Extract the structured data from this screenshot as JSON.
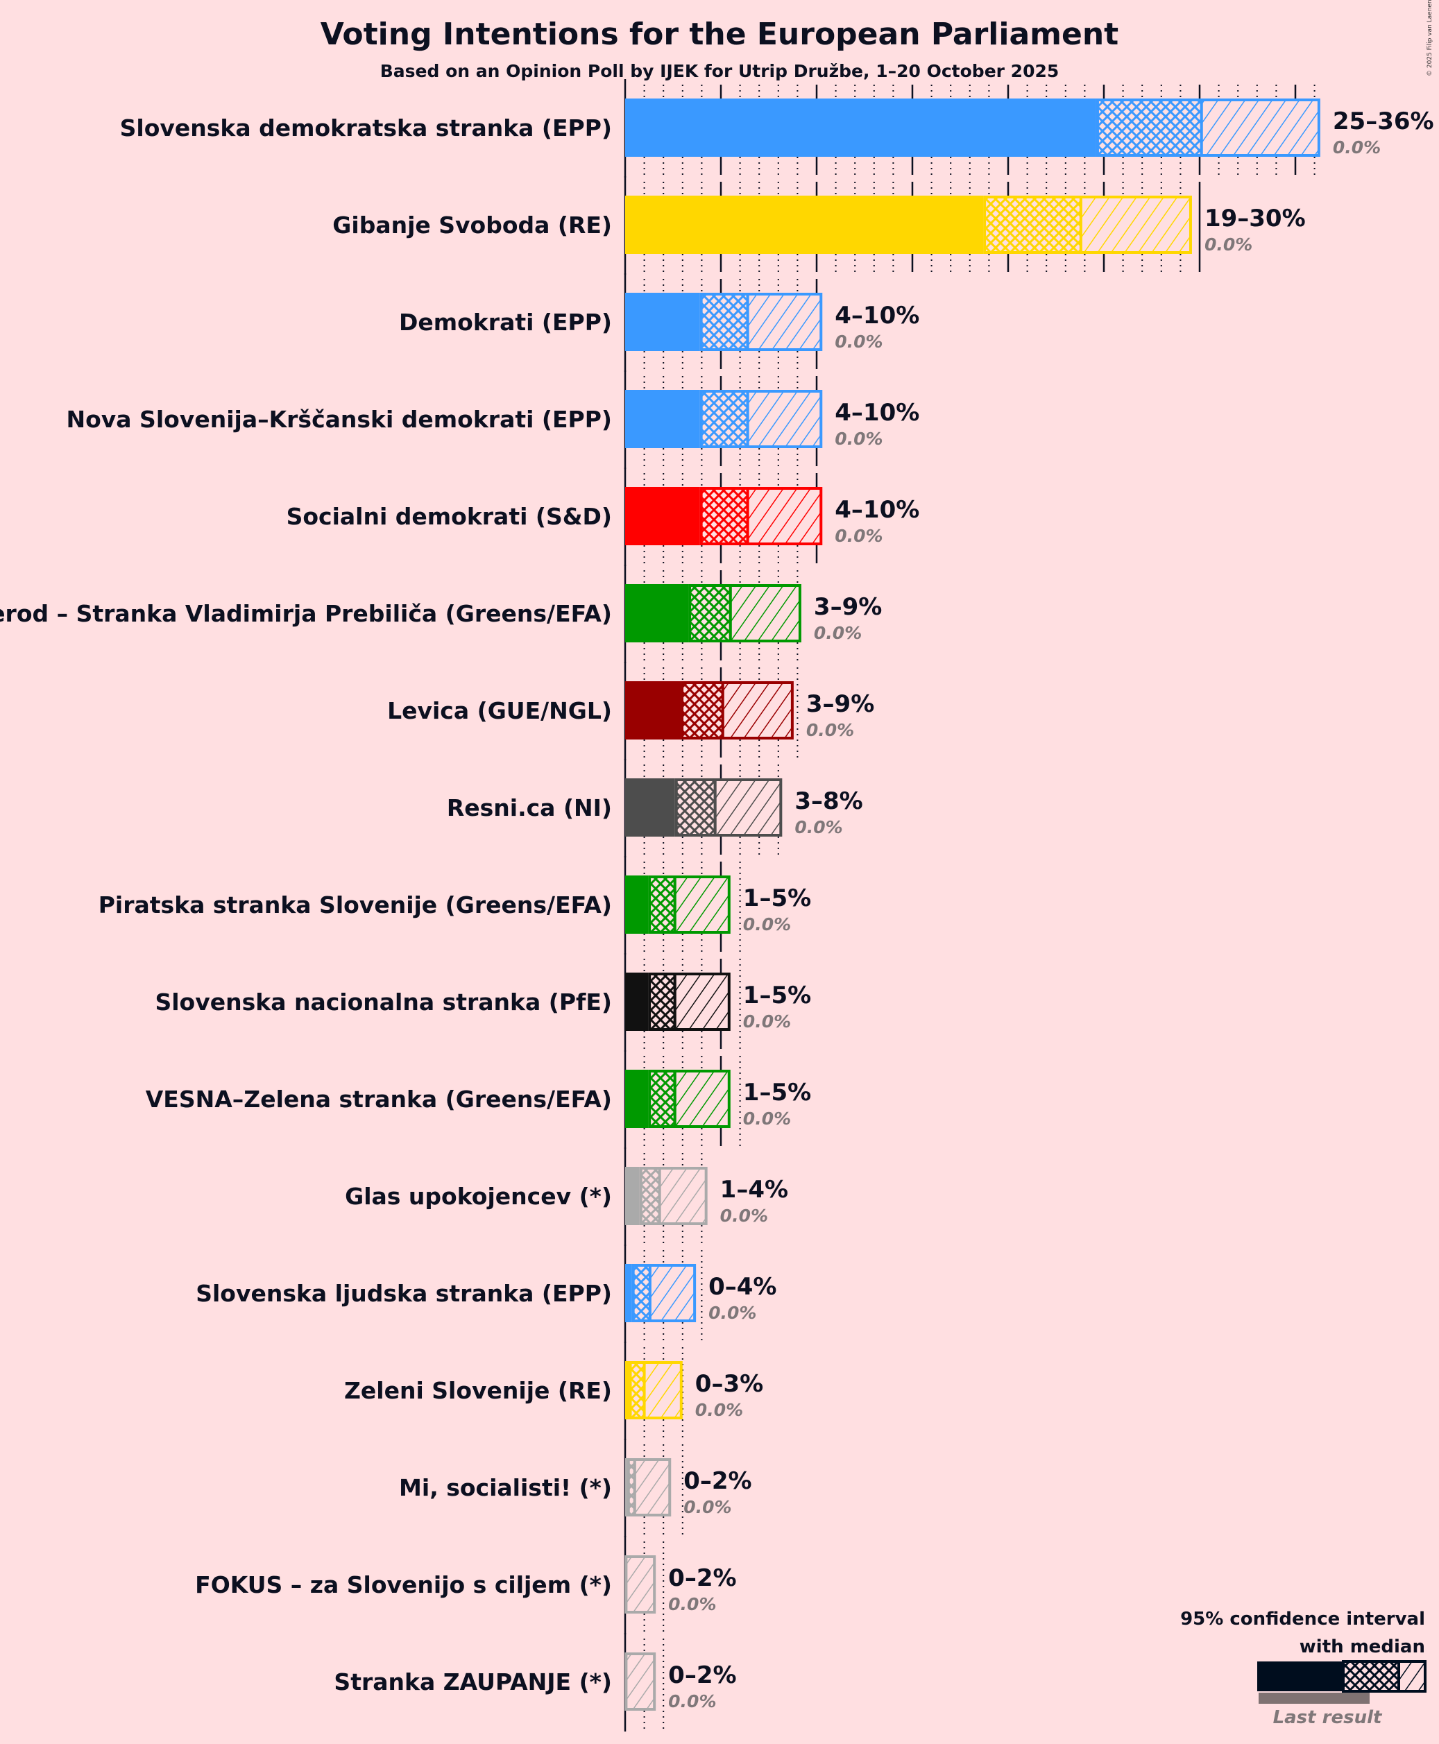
{
  "chart_data": {
    "type": "bar",
    "title": "Voting Intentions for the European Parliament",
    "subtitle": "Based on an Opinion Poll by IJEK for Utrip Družbe, 1–20 October 2025",
    "credit": "© 2025 Filip van Laenen",
    "xlabel": "",
    "ylabel": "",
    "xlim": [
      0,
      37
    ],
    "grid": true,
    "legend": {
      "title_line1": "95% confidence interval",
      "title_line2": "with median",
      "last_result_label": "Last result",
      "placement": "bottom-right"
    },
    "series": [
      {
        "name": "Slovenska demokratska stranka (EPP)",
        "color": "#3a99ff",
        "low": 24.6,
        "median": 30.1,
        "high": 36.3,
        "range_label": "25–36%",
        "last_result": "0.0%"
      },
      {
        "name": "Gibanje Svoboda (RE)",
        "color": "#ffd700",
        "low": 18.7,
        "median": 23.8,
        "high": 29.6,
        "range_label": "19–30%",
        "last_result": "0.0%"
      },
      {
        "name": "Demokrati (EPP)",
        "color": "#3a99ff",
        "low": 3.9,
        "median": 6.4,
        "high": 10.3,
        "range_label": "4–10%",
        "last_result": "0.0%"
      },
      {
        "name": "Nova Slovenija–Krščanski demokrati (EPP)",
        "color": "#3a99ff",
        "low": 3.9,
        "median": 6.4,
        "high": 10.3,
        "range_label": "4–10%",
        "last_result": "0.0%"
      },
      {
        "name": "Socialni demokrati (S&D)",
        "color": "#ff0000",
        "low": 3.9,
        "median": 6.4,
        "high": 10.3,
        "range_label": "4–10%",
        "last_result": "0.0%"
      },
      {
        "name": "Prerod – Stranka Vladimirja Prebiliča (Greens/EFA)",
        "color": "#009900",
        "low": 3.3,
        "median": 5.5,
        "high": 9.2,
        "range_label": "3–9%",
        "last_result": "0.0%"
      },
      {
        "name": "Levica (GUE/NGL)",
        "color": "#990000",
        "low": 2.9,
        "median": 5.1,
        "high": 8.8,
        "range_label": "3–9%",
        "last_result": "0.0%"
      },
      {
        "name": "Resni.ca (NI)",
        "color": "#4d4d4d",
        "low": 2.6,
        "median": 4.7,
        "high": 8.2,
        "range_label": "3–8%",
        "last_result": "0.0%"
      },
      {
        "name": "Piratska stranka Slovenije (Greens/EFA)",
        "color": "#009900",
        "low": 1.2,
        "median": 2.6,
        "high": 5.5,
        "range_label": "1–5%",
        "last_result": "0.0%"
      },
      {
        "name": "Slovenska nacionalna stranka (PfE)",
        "color": "#111111",
        "low": 1.2,
        "median": 2.6,
        "high": 5.5,
        "range_label": "1–5%",
        "last_result": "0.0%"
      },
      {
        "name": "VESNA–Zelena stranka (Greens/EFA)",
        "color": "#009900",
        "low": 1.2,
        "median": 2.6,
        "high": 5.5,
        "range_label": "1–5%",
        "last_result": "0.0%"
      },
      {
        "name": "Glas upokojencev (*)",
        "color": "#aaaaaa",
        "low": 0.75,
        "median": 1.8,
        "high": 4.3,
        "range_label": "1–4%",
        "last_result": "0.0%"
      },
      {
        "name": "Slovenska ljudska stranka (EPP)",
        "color": "#3a99ff",
        "low": 0.35,
        "median": 1.3,
        "high": 3.7,
        "range_label": "0–4%",
        "last_result": "0.0%"
      },
      {
        "name": "Zeleni Slovenije (RE)",
        "color": "#ffd700",
        "low": 0.2,
        "median": 1.0,
        "high": 3.0,
        "range_label": "0–3%",
        "last_result": "0.0%"
      },
      {
        "name": "Mi, socialisti! (*)",
        "color": "#aaaaaa",
        "low": 0.1,
        "median": 0.5,
        "high": 2.4,
        "range_label": "0–2%",
        "last_result": "0.0%"
      },
      {
        "name": "FOKUS – za Slovenijo s ciljem (*)",
        "color": "#aaaaaa",
        "low": 0.0,
        "median": 0.05,
        "high": 1.6,
        "range_label": "0–2%",
        "last_result": "0.0%"
      },
      {
        "name": "Stranka ZAUPANJE (*)",
        "color": "#aaaaaa",
        "low": 0.0,
        "median": 0.05,
        "high": 1.6,
        "range_label": "0–2%",
        "last_result": "0.0%"
      }
    ]
  }
}
